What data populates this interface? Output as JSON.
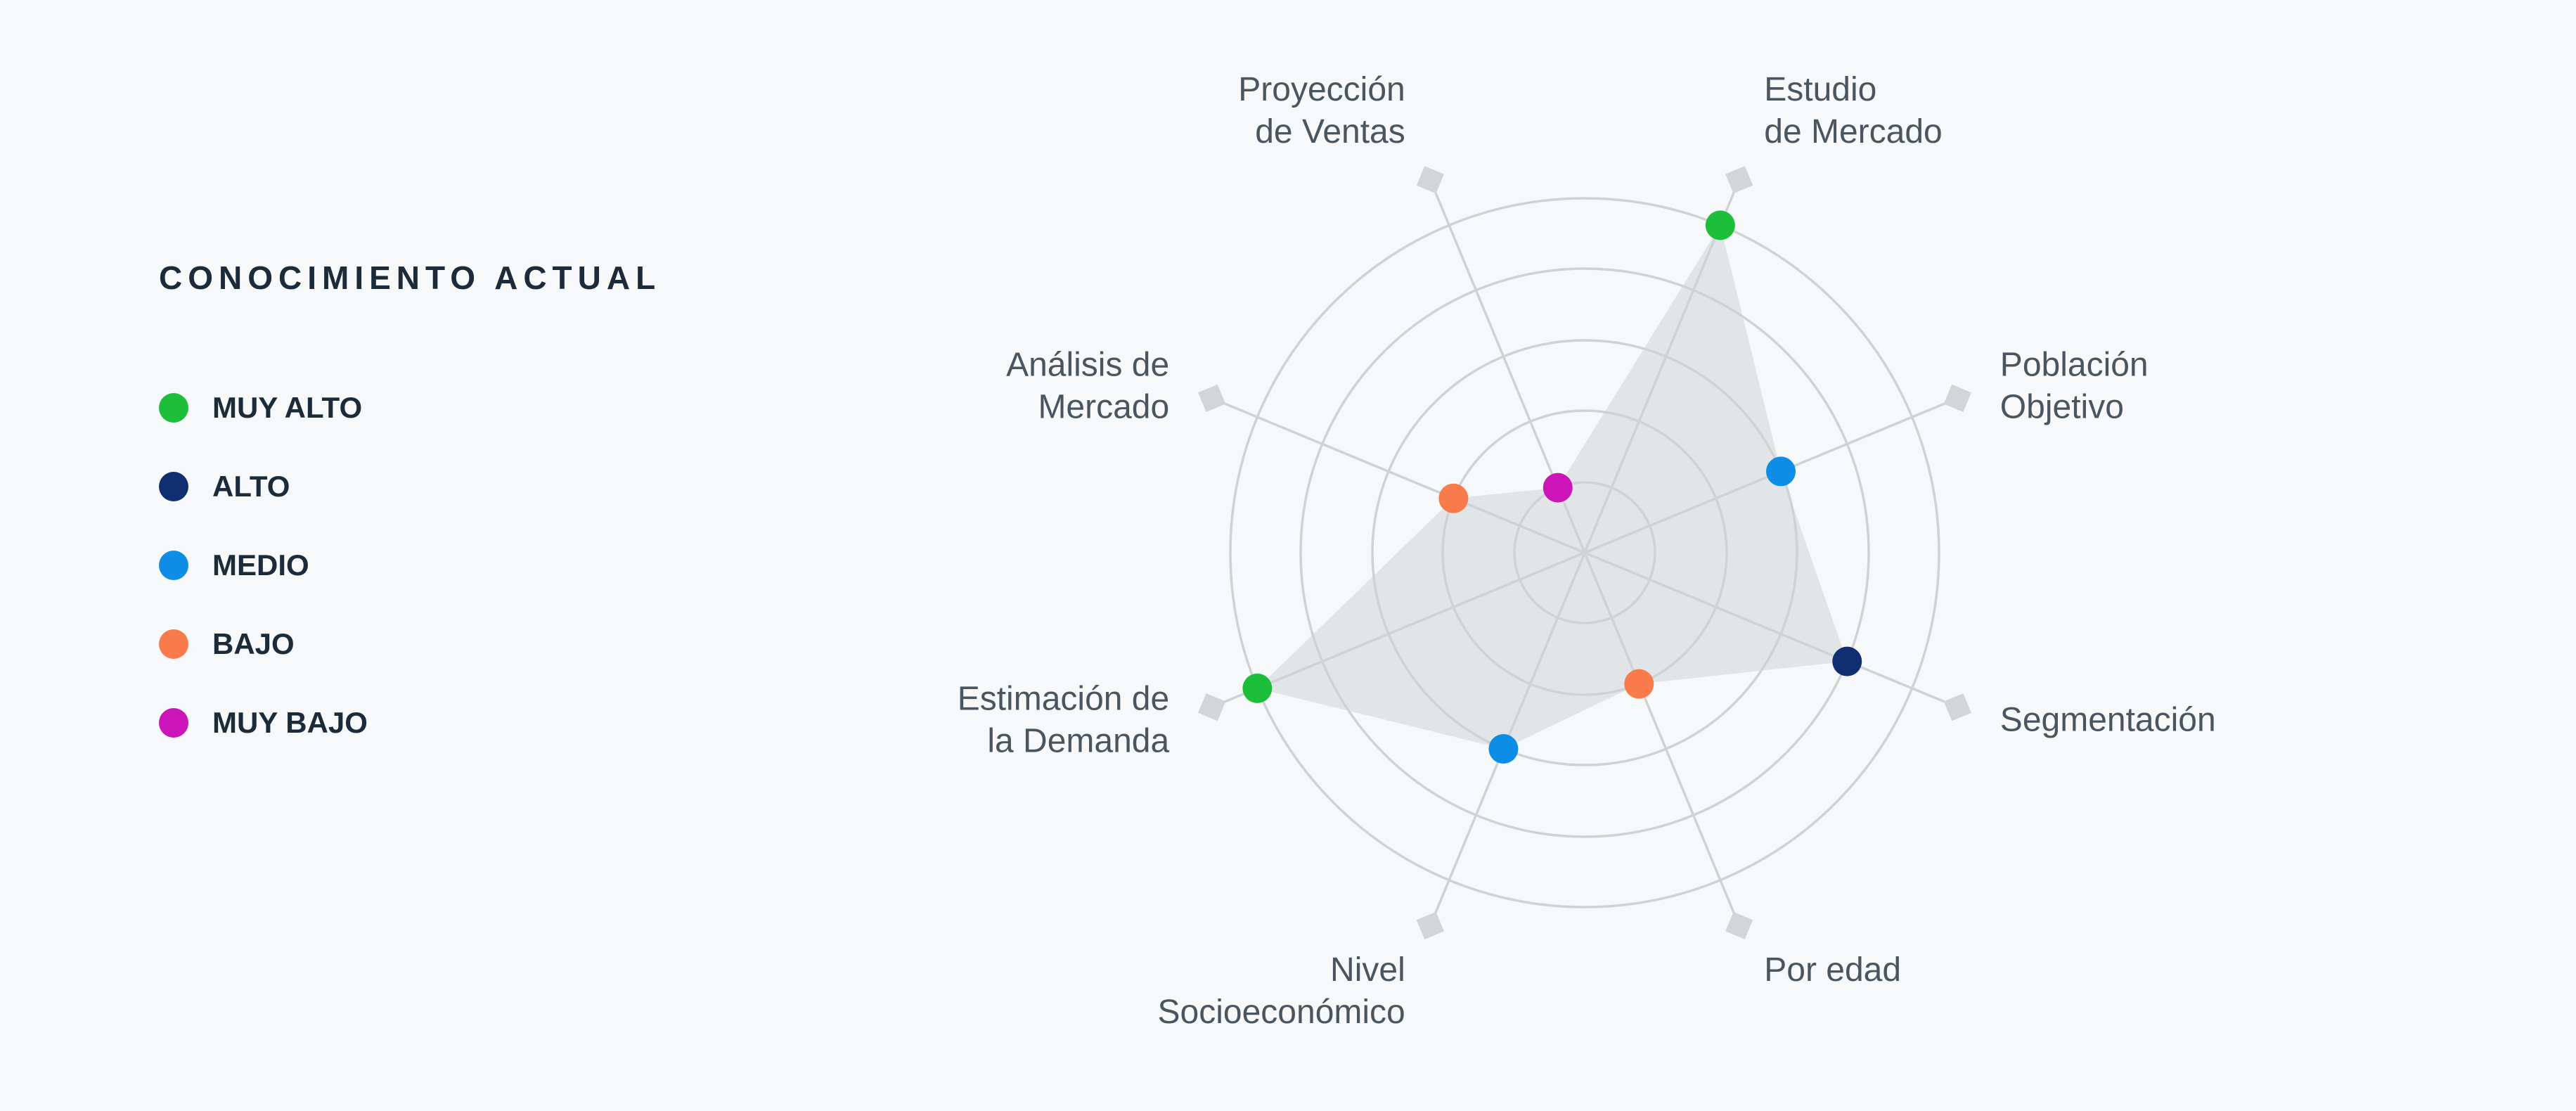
{
  "legend": {
    "title": "CONOCIMIENTO ACTUAL",
    "items": [
      {
        "label": "MUY ALTO",
        "level": 5,
        "color": "#1dbf3a"
      },
      {
        "label": "ALTO",
        "level": 4,
        "color": "#0f2f70"
      },
      {
        "label": "MEDIO",
        "level": 3,
        "color": "#0e8de6"
      },
      {
        "label": "BAJO",
        "level": 2,
        "color": "#f97a4a"
      },
      {
        "label": "MUY BAJO",
        "level": 1,
        "color": "#cc15b8"
      }
    ]
  },
  "chart_data": {
    "type": "radar",
    "title": "",
    "rlim": [
      0,
      5
    ],
    "rings": 5,
    "grid": true,
    "fill_color": "#e2e5e7",
    "axes": [
      {
        "label_lines": [
          "Estudio",
          "de Mercado"
        ],
        "value": 5,
        "level_label": "MUY ALTO"
      },
      {
        "label_lines": [
          "Población",
          "Objetivo"
        ],
        "value": 3,
        "level_label": "MEDIO"
      },
      {
        "label_lines": [
          "Segmentación"
        ],
        "value": 4,
        "level_label": "ALTO"
      },
      {
        "label_lines": [
          "Por edad"
        ],
        "value": 2,
        "level_label": "BAJO"
      },
      {
        "label_lines": [
          "Nivel",
          "Socioeconómico"
        ],
        "value": 3,
        "level_label": "MEDIO"
      },
      {
        "label_lines": [
          "Estimación de",
          "la Demanda"
        ],
        "value": 5,
        "level_label": "MUY ALTO"
      },
      {
        "label_lines": [
          "Análisis de",
          "Mercado"
        ],
        "value": 2,
        "level_label": "BAJO"
      },
      {
        "label_lines": [
          "Proyección",
          "de Ventas"
        ],
        "value": 1,
        "level_label": "MUY BAJO"
      }
    ]
  }
}
